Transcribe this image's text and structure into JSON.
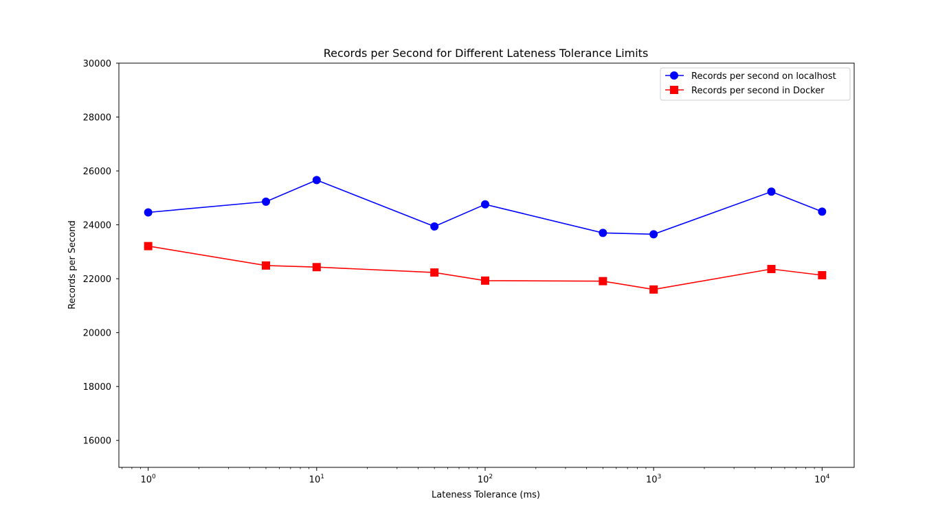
{
  "chart_data": {
    "type": "line",
    "title": "Records per Second for Different Lateness Tolerance Limits",
    "xlabel": "Lateness Tolerance (ms)",
    "ylabel": "Records per Second",
    "x_scale": "log",
    "xlim": [
      0.67,
      15500
    ],
    "ylim": [
      15000,
      30000
    ],
    "x": [
      1,
      5,
      10,
      50,
      100,
      500,
      1000,
      5000,
      10000
    ],
    "x_ticks": [
      {
        "value": 1,
        "base": "10",
        "exp": "0"
      },
      {
        "value": 10,
        "base": "10",
        "exp": "1"
      },
      {
        "value": 100,
        "base": "10",
        "exp": "2"
      },
      {
        "value": 1000,
        "base": "10",
        "exp": "3"
      },
      {
        "value": 10000,
        "base": "10",
        "exp": "4"
      }
    ],
    "y_ticks": [
      16000,
      18000,
      20000,
      22000,
      24000,
      26000,
      28000,
      30000
    ],
    "grid": false,
    "legend_position": "top-right",
    "series": [
      {
        "name": "Records per second on localhost",
        "color": "#0000ff",
        "marker": "circle",
        "values": [
          24460,
          24860,
          25660,
          23940,
          24760,
          23700,
          23650,
          25230,
          24490
        ]
      },
      {
        "name": "Records per second in Docker",
        "color": "#ff0000",
        "marker": "square",
        "values": [
          23210,
          22490,
          22430,
          22230,
          21930,
          21910,
          21600,
          22360,
          22130
        ]
      }
    ]
  }
}
